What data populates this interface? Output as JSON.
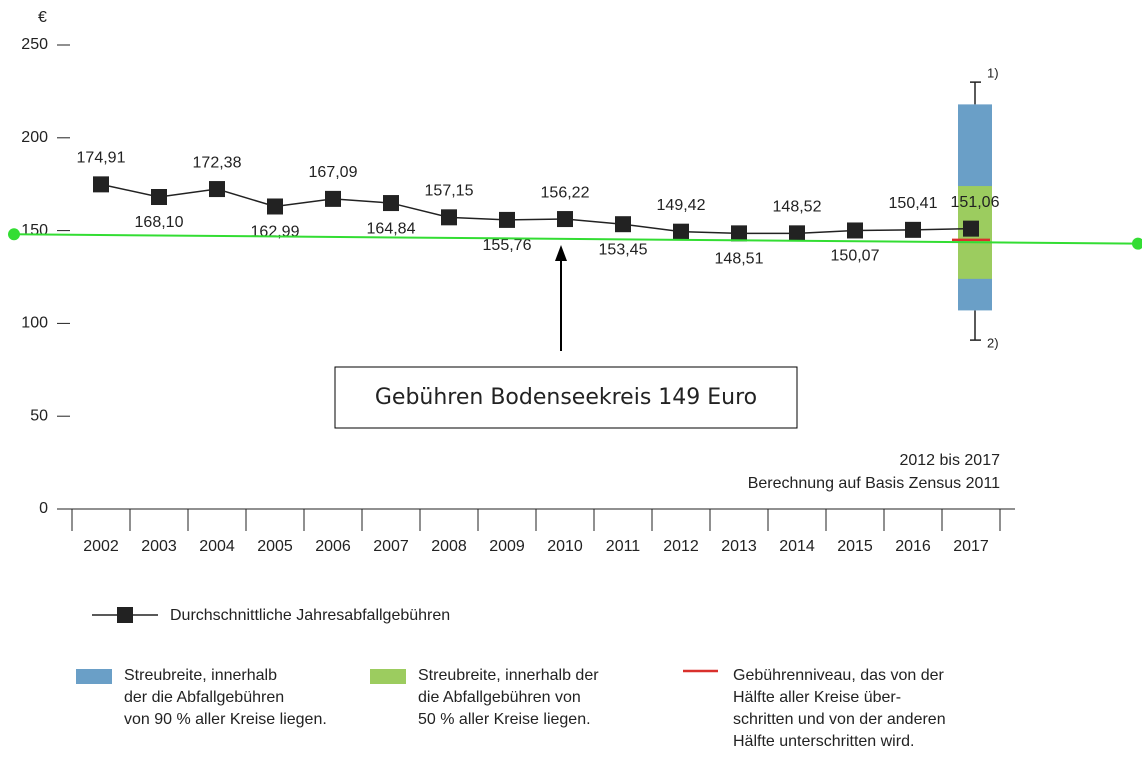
{
  "chart_data": {
    "type": "line",
    "unit_label": "€",
    "series_name": "Durchschnittliche Jahresabfallgebühren",
    "categories": [
      "2002",
      "2003",
      "2004",
      "2005",
      "2006",
      "2007",
      "2008",
      "2009",
      "2010",
      "2011",
      "2012",
      "2013",
      "2014",
      "2015",
      "2016",
      "2017"
    ],
    "values": [
      174.91,
      168.1,
      172.38,
      162.99,
      167.09,
      164.84,
      157.15,
      155.76,
      156.22,
      153.45,
      149.42,
      148.51,
      148.52,
      150.07,
      150.41,
      151.06
    ],
    "value_labels": [
      "174,91",
      "168,10",
      "172,38",
      "162,99",
      "167,09",
      "164,84",
      "157,15",
      "155,76",
      "156,22",
      "153,45",
      "149,42",
      "148,51",
      "148,52",
      "150,07",
      "150,41",
      "151,06"
    ],
    "color": "#222222",
    "ylim": [
      0,
      250
    ],
    "yticks": [
      0,
      50,
      100,
      150,
      200,
      250
    ],
    "box": {
      "whisker_high": 230,
      "band_90_high": 218,
      "band_50_high": 174,
      "median": 145,
      "band_50_low": 124,
      "band_90_low": 107,
      "whisker_low": 91,
      "whisker_high_label": "1)",
      "whisker_low_label": "2)",
      "band_90_color": "#6a9fc7",
      "band_50_color": "#9ccc5f",
      "median_color": "#d9302c",
      "band_90_legend": [
        "Streubreite, innerhalb",
        "der die Abfallgebühren",
        "von 90 % aller Kreise liegen."
      ],
      "band_50_legend": [
        "Streubreite, innerhalb der",
        "die Abfallgebühren von",
        "50 % aller Kreise liegen."
      ],
      "median_legend": [
        "Gebührenniveau, das von der",
        "Hälfte aller Kreise über-",
        "schritten und von der anderen",
        "Hälfte unterschritten wird."
      ]
    },
    "reference_line": {
      "start": 148,
      "end": 143,
      "color": "#33dd33"
    },
    "annotation": "Gebühren Bodenseekreis 149 Euro",
    "notes": [
      "2012 bis 2017",
      "Berechnung auf Basis Zensus 2011"
    ]
  }
}
